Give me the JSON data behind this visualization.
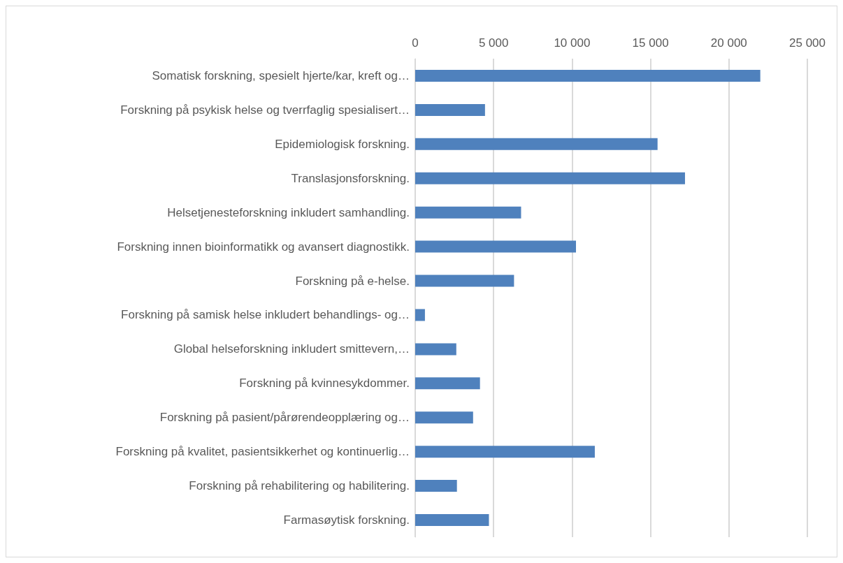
{
  "chart_data": {
    "type": "bar",
    "orientation": "horizontal",
    "categories": [
      "Somatisk forskning, spesielt hjerte/kar, kreft og…",
      "Forskning på psykisk helse og tverrfaglig spesialisert…",
      "Epidemiologisk forskning.",
      "Translasjonsforskning.",
      "Helsetjenesteforskning inkludert samhandling.",
      "Forskning innen bioinformatikk og avansert diagnostikk.",
      "Forskning på e-helse.",
      "Forskning på samisk helse inkludert behandlings- og…",
      "Global helseforskning inkludert smittevern,…",
      "Forskning på kvinnesykdommer.",
      "Forskning på pasient/pårørendeopplæring og…",
      "Forskning på kvalitet, pasientsikkerhet og kontinuerlig…",
      "Forskning på rehabilitering og habilitering.",
      "Farmasøytisk forskning."
    ],
    "values": [
      22000,
      4450,
      15450,
      17200,
      6750,
      10250,
      6300,
      620,
      2620,
      4130,
      3690,
      11450,
      2660,
      4700
    ],
    "color": "#4f81bd",
    "xlim": [
      0,
      25000
    ],
    "xticks": [
      0,
      {
        "value": 5000,
        "label": "5 000"
      },
      {
        "value": 10000,
        "label": "10 000"
      },
      {
        "value": 15000,
        "label": "15 000"
      },
      {
        "value": 20000,
        "label": "20 000"
      },
      {
        "value": 25000,
        "label": "25 000"
      }
    ],
    "grid": "x"
  }
}
